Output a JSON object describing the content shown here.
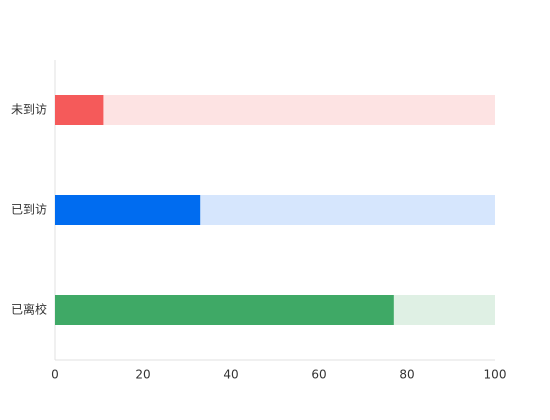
{
  "chart_data": {
    "type": "bar",
    "orientation": "horizontal",
    "categories": [
      "未到访",
      "已到访",
      "已离校"
    ],
    "values": [
      11,
      33,
      77
    ],
    "colors": [
      "#f55a5a",
      "#006cf0",
      "#3fa966"
    ],
    "track_colors": [
      "#fde3e3",
      "#d6e6fd",
      "#dff0e4"
    ],
    "xlim": [
      0,
      100
    ],
    "xticks": [
      0,
      20,
      40,
      60,
      80,
      100
    ],
    "grid": false
  }
}
